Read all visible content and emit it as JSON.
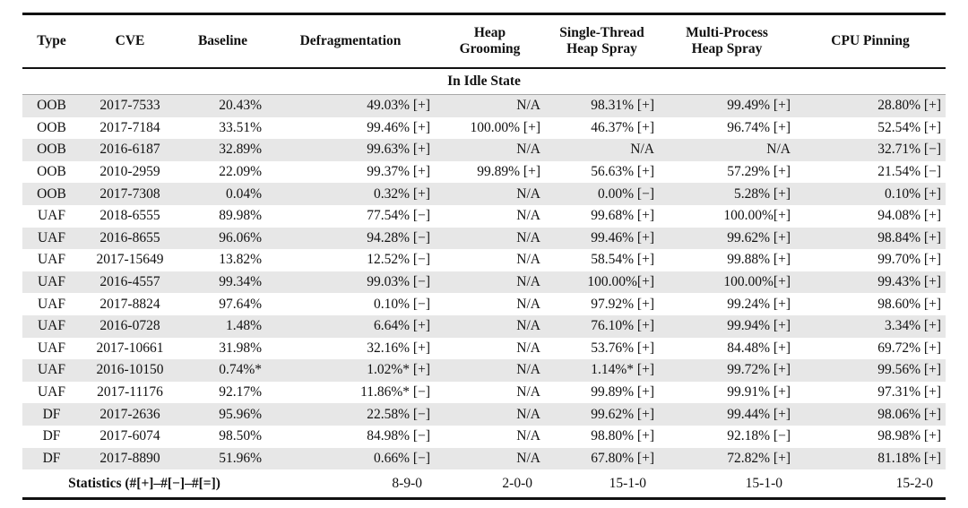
{
  "table": {
    "columns": [
      "Type",
      "CVE",
      "Baseline",
      "Defragmentation",
      "Heap\nGrooming",
      "Single-Thread\nHeap Spray",
      "Multi-Process\nHeap Spray",
      "CPU Pinning"
    ],
    "section_header": "In Idle State",
    "rows": [
      [
        "OOB",
        "2017-7533",
        "20.43%",
        "49.03% [+]",
        "N/A",
        "98.31% [+]",
        "99.49% [+]",
        "28.80% [+]"
      ],
      [
        "OOB",
        "2017-7184",
        "33.51%",
        "99.46% [+]",
        "100.00% [+]",
        "46.37% [+]",
        "96.74% [+]",
        "52.54% [+]"
      ],
      [
        "OOB",
        "2016-6187",
        "32.89%",
        "99.63% [+]",
        "N/A",
        "N/A",
        "N/A",
        "32.71% [−]"
      ],
      [
        "OOB",
        "2010-2959",
        "22.09%",
        "99.37% [+]",
        "99.89% [+]",
        "56.63% [+]",
        "57.29% [+]",
        "21.54% [−]"
      ],
      [
        "OOB",
        "2017-7308",
        "0.04%",
        "0.32% [+]",
        "N/A",
        "0.00% [−]",
        "5.28% [+]",
        "0.10% [+]"
      ],
      [
        "UAF",
        "2018-6555",
        "89.98%",
        "77.54% [−]",
        "N/A",
        "99.68% [+]",
        "100.00%[+]",
        "94.08% [+]"
      ],
      [
        "UAF",
        "2016-8655",
        "96.06%",
        "94.28% [−]",
        "N/A",
        "99.46% [+]",
        "99.62% [+]",
        "98.84% [+]"
      ],
      [
        "UAF",
        "2017-15649",
        "13.82%",
        "12.52% [−]",
        "N/A",
        "58.54% [+]",
        "99.88% [+]",
        "99.70% [+]"
      ],
      [
        "UAF",
        "2016-4557",
        "99.34%",
        "99.03% [−]",
        "N/A",
        "100.00%[+]",
        "100.00%[+]",
        "99.43% [+]"
      ],
      [
        "UAF",
        "2017-8824",
        "97.64%",
        "0.10% [−]",
        "N/A",
        "97.92% [+]",
        "99.24% [+]",
        "98.60% [+]"
      ],
      [
        "UAF",
        "2016-0728",
        "1.48%",
        "6.64% [+]",
        "N/A",
        "76.10% [+]",
        "99.94% [+]",
        "3.34% [+]"
      ],
      [
        "UAF",
        "2017-10661",
        "31.98%",
        "32.16% [+]",
        "N/A",
        "53.76% [+]",
        "84.48% [+]",
        "69.72% [+]"
      ],
      [
        "UAF",
        "2016-10150",
        "0.74%*",
        "1.02%* [+]",
        "N/A",
        "1.14%* [+]",
        "99.72% [+]",
        "99.56% [+]"
      ],
      [
        "UAF",
        "2017-11176",
        "92.17%",
        "11.86%* [−]",
        "N/A",
        "99.89% [+]",
        "99.91% [+]",
        "97.31% [+]"
      ],
      [
        "DF",
        "2017-2636",
        "95.96%",
        "22.58% [−]",
        "N/A",
        "99.62% [+]",
        "99.44% [+]",
        "98.06% [+]"
      ],
      [
        "DF",
        "2017-6074",
        "98.50%",
        "84.98% [−]",
        "N/A",
        "98.80% [+]",
        "92.18% [−]",
        "98.98% [+]"
      ],
      [
        "DF",
        "2017-8890",
        "51.96%",
        "0.66% [−]",
        "N/A",
        "67.80% [+]",
        "72.82% [+]",
        "81.18% [+]"
      ]
    ],
    "statistics": {
      "label": "Statistics (#[+]–#[−]–#[=])",
      "values": [
        "8-9-0",
        "2-0-0",
        "15-1-0",
        "15-1-0",
        "15-2-0"
      ]
    }
  },
  "colors": {
    "row_shade": "#e7e7e7",
    "rule": "#111111",
    "section_rule": "#a8a8a8",
    "background": "#ffffff",
    "text": "#111111"
  }
}
